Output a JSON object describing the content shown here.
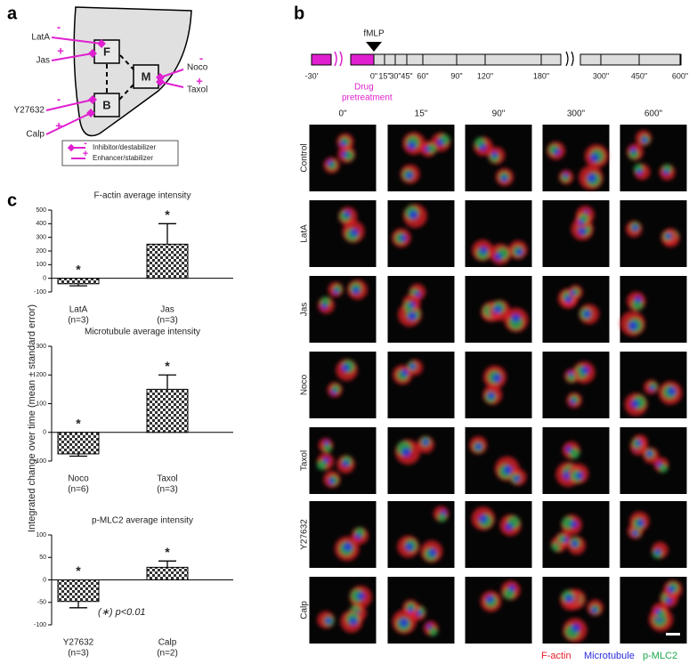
{
  "panel_a": {
    "label": "a",
    "nodes": [
      "F",
      "M",
      "B"
    ],
    "drugs": [
      {
        "name": "LatA",
        "sign": "-"
      },
      {
        "name": "Jas",
        "sign": "+"
      },
      {
        "name": "Y27632",
        "sign": "-"
      },
      {
        "name": "Calp",
        "sign": "+"
      },
      {
        "name": "Noco",
        "sign": "-"
      },
      {
        "name": "Taxol",
        "sign": "+"
      }
    ],
    "legend": [
      {
        "sign": "-",
        "text": "Inhibitor/destabilizer"
      },
      {
        "sign": "+",
        "text": "Enhancer/stabilizer"
      }
    ]
  },
  "panel_b": {
    "label": "b",
    "timeline": {
      "marker": "fMLP",
      "pretreatment": [
        "Drug",
        "pretreatment"
      ],
      "ticks": [
        "-30'",
        "0\"",
        "15\"",
        "30\"",
        "45\"",
        "60\"",
        "90\"",
        "120\"",
        "180\"",
        "300\"",
        "450\"",
        "600\""
      ]
    },
    "columns": [
      "0\"",
      "15\"",
      "90\"",
      "300\"",
      "600\""
    ],
    "rows": [
      "Control",
      "LatA",
      "Jas",
      "Noco",
      "Taxol",
      "Y27632",
      "Calp"
    ],
    "channels": [
      {
        "name": "F-actin",
        "color": "#e8202a"
      },
      {
        "name": "Microtubule",
        "color": "#2a2ad8"
      },
      {
        "name": "p-MLC2",
        "color": "#1aa84a"
      }
    ]
  },
  "panel_c": {
    "label": "c",
    "ylabel": "Integrated change over time (mean ± standard error)",
    "annotation": "(∗) p<0.01"
  },
  "chart_data": [
    {
      "type": "bar",
      "title": "F-actin average intensity",
      "categories": [
        "LatA",
        "Jas"
      ],
      "n_labels": [
        "(n=3)",
        "(n=3)"
      ],
      "values": [
        -40,
        250
      ],
      "errors": [
        15,
        150
      ],
      "significance": [
        "*",
        "*"
      ],
      "ylim": [
        -100,
        500
      ],
      "yticks": [
        -100,
        0,
        100,
        200,
        300,
        400,
        500
      ]
    },
    {
      "type": "bar",
      "title": "Microtubule average intensity",
      "categories": [
        "Noco",
        "Taxol"
      ],
      "n_labels": [
        "(n=6)",
        "(n=3)"
      ],
      "values": [
        -75,
        150
      ],
      "errors": [
        8,
        50
      ],
      "significance": [
        "*",
        "*"
      ],
      "ylim": [
        -100,
        300
      ],
      "yticks": [
        -100,
        0,
        100,
        200,
        300
      ]
    },
    {
      "type": "bar",
      "title": "p-MLC2 average intensity",
      "categories": [
        "Y27632",
        "Calp"
      ],
      "n_labels": [
        "(n=3)",
        "(n=2)"
      ],
      "values": [
        -48,
        28
      ],
      "errors": [
        14,
        14
      ],
      "significance": [
        "*",
        "*"
      ],
      "ylim": [
        -100,
        100
      ],
      "yticks": [
        -100,
        -50,
        0,
        50,
        100
      ]
    }
  ]
}
